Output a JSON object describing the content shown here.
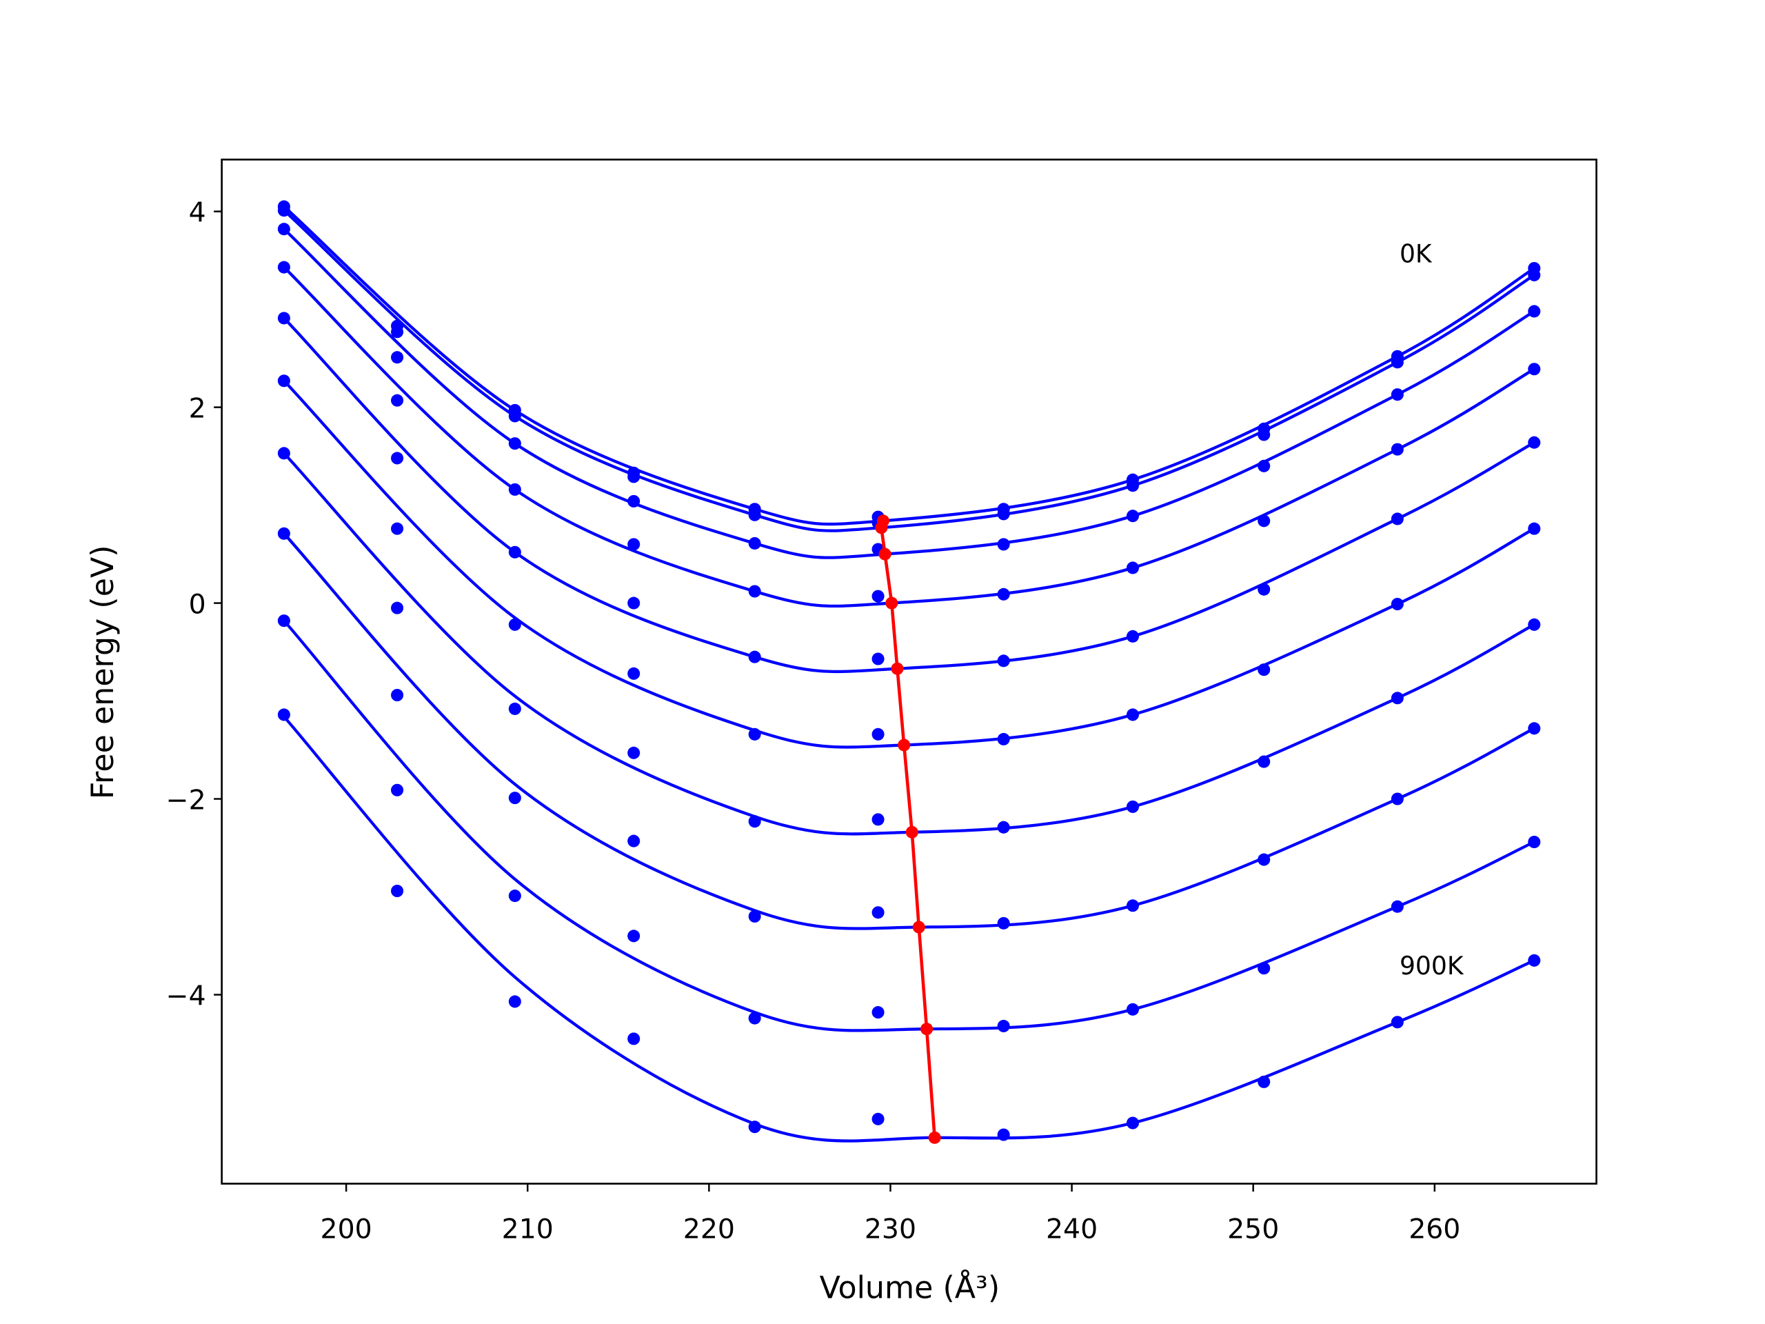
{
  "chart_data": {
    "type": "line",
    "xlabel": "Volume (Å³)",
    "ylabel": "Free energy (eV)",
    "xlim": [
      193.14,
      268.92
    ],
    "ylim": [
      -5.93,
      4.53
    ],
    "xticks": [
      200,
      210,
      220,
      230,
      240,
      250,
      260
    ],
    "yticks": [
      {
        "value": -4,
        "label": "−4"
      },
      {
        "value": -2,
        "label": "−2"
      },
      0,
      2,
      4
    ],
    "annotations": [
      "0K",
      "900K"
    ],
    "color": "#0000ff",
    "x": [
      196.57,
      202.81,
      209.3,
      215.85,
      222.52,
      229.32,
      236.24,
      243.36,
      250.59,
      257.95,
      265.49
    ],
    "series": [
      {
        "values": [
          4.05,
          2.83,
          1.97,
          1.33,
          0.96,
          0.88,
          0.96,
          1.26,
          1.78,
          2.52,
          3.42
        ],
        "fit_x": [
          196.57,
          209.3,
          222.52,
          229.6,
          243.36,
          257.95,
          265.49
        ],
        "fit_values": [
          4.05,
          1.97,
          0.96,
          0.84,
          1.26,
          2.52,
          3.42
        ]
      },
      {
        "values": [
          4.01,
          2.77,
          1.91,
          1.29,
          0.9,
          0.82,
          0.91,
          1.2,
          1.72,
          2.46,
          3.35
        ],
        "fit_x": [
          196.57,
          209.3,
          222.52,
          229.5,
          243.36,
          257.95,
          265.49
        ],
        "fit_values": [
          4.01,
          1.91,
          0.9,
          0.77,
          1.2,
          2.46,
          3.35
        ]
      },
      {
        "values": [
          3.82,
          2.51,
          1.63,
          1.04,
          0.61,
          0.55,
          0.6,
          0.89,
          1.4,
          2.13,
          2.98
        ],
        "fit_x": [
          196.57,
          209.3,
          222.52,
          229.7,
          243.36,
          257.95,
          265.49
        ],
        "fit_values": [
          3.82,
          1.63,
          0.61,
          0.5,
          0.89,
          2.13,
          2.98
        ]
      },
      {
        "values": [
          3.43,
          2.07,
          1.16,
          0.6,
          0.12,
          0.07,
          0.09,
          0.36,
          0.84,
          1.57,
          2.39
        ],
        "fit_x": [
          196.57,
          209.3,
          222.52,
          230.07,
          243.36,
          257.95,
          265.49
        ],
        "fit_values": [
          3.43,
          1.16,
          0.12,
          0.0,
          0.36,
          1.57,
          2.39
        ]
      },
      {
        "values": [
          2.91,
          1.48,
          0.52,
          0.0,
          -0.55,
          -0.57,
          -0.59,
          -0.34,
          0.14,
          0.86,
          1.64
        ],
        "fit_x": [
          196.57,
          209.3,
          222.52,
          230.38,
          243.36,
          257.95,
          265.49
        ],
        "fit_values": [
          2.91,
          0.52,
          -0.55,
          -0.67,
          -0.34,
          0.86,
          1.64
        ]
      },
      {
        "values": [
          2.27,
          0.76,
          -0.22,
          -0.72,
          -1.34,
          -1.34,
          -1.39,
          -1.14,
          -0.68,
          -0.01,
          0.76
        ],
        "fit_x": [
          196.57,
          209.3,
          222.52,
          230.75,
          243.36,
          257.95,
          265.49
        ],
        "fit_values": [
          2.27,
          -0.15,
          -1.3,
          -1.45,
          -1.14,
          -0.01,
          0.76
        ]
      },
      {
        "values": [
          1.53,
          -0.05,
          -1.08,
          -1.53,
          -2.23,
          -2.21,
          -2.29,
          -2.08,
          -1.62,
          -0.97,
          -0.22
        ],
        "fit_x": [
          196.57,
          209.3,
          222.52,
          231.19,
          243.36,
          257.95,
          265.49
        ],
        "fit_values": [
          1.53,
          -0.95,
          -2.18,
          -2.34,
          -2.08,
          -0.97,
          -0.22
        ]
      },
      {
        "values": [
          0.71,
          -0.94,
          -1.99,
          -2.43,
          -3.2,
          -3.16,
          -3.27,
          -3.09,
          -2.62,
          -2.0,
          -1.28
        ],
        "fit_x": [
          196.57,
          209.3,
          222.52,
          231.57,
          243.36,
          257.95,
          265.49
        ],
        "fit_values": [
          0.71,
          -1.85,
          -3.14,
          -3.31,
          -3.09,
          -2.0,
          -1.28
        ]
      },
      {
        "values": [
          -0.18,
          -1.91,
          -2.99,
          -3.4,
          -4.24,
          -4.18,
          -4.32,
          -4.15,
          -3.73,
          -3.1,
          -2.44
        ],
        "fit_x": [
          196.57,
          209.3,
          222.52,
          232.0,
          243.36,
          257.95,
          265.49
        ],
        "fit_values": [
          -0.18,
          -2.82,
          -4.18,
          -4.35,
          -4.15,
          -3.1,
          -2.44
        ]
      },
      {
        "values": [
          -1.14,
          -2.94,
          -4.07,
          -4.45,
          -5.35,
          -5.27,
          -5.43,
          -5.31,
          -4.89,
          -4.28,
          -3.65
        ],
        "fit_x": [
          196.57,
          209.3,
          222.52,
          232.44,
          243.36,
          257.95,
          265.49
        ],
        "fit_values": [
          -1.16,
          -3.82,
          -5.32,
          -5.46,
          -5.31,
          -4.28,
          -3.65
        ]
      }
    ],
    "minima": {
      "color": "#ff0000",
      "x": [
        229.6,
        229.5,
        229.7,
        230.07,
        230.38,
        230.75,
        231.19,
        231.57,
        232.0,
        232.44
      ],
      "values": [
        0.84,
        0.77,
        0.5,
        0.0,
        -0.67,
        -1.45,
        -2.34,
        -3.31,
        -4.35,
        -5.46
      ]
    }
  }
}
